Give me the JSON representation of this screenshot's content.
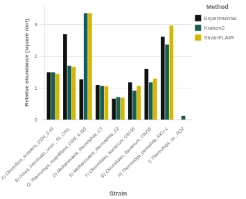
{
  "chart_data": {
    "type": "bar",
    "categories": [
      "A) Clostridium_scindens_DSM_5,45",
      "B) Dorea_intestinalis_unstr._Ab_CRIL",
      "C) Thermotoga_neapolitana_DSM_4,359",
      "D) Methanosaeta_thermophila_C3",
      "E) Methanosaeta_thermophila_S2",
      "F) Clostridiales_bacterium_CBI-95",
      "G) Clostridiales_bacterium_CB235",
      "H) Thermotoga_petrophila_RKU-1",
      "I) Thermotoga_sp._RQ2"
    ],
    "series": [
      {
        "name": "Experimental",
        "color": "#111111",
        "values": [
          1.5,
          2.7,
          1.28,
          1.1,
          0.67,
          1.18,
          1.6,
          2.62,
          0.0
        ]
      },
      {
        "name": "Kraken2",
        "color": "#1a5e52",
        "values": [
          1.5,
          1.7,
          3.35,
          1.07,
          0.72,
          0.92,
          1.18,
          2.37,
          0.13
        ]
      },
      {
        "name": "StrainFLAIR",
        "color": "#d4b800",
        "values": [
          1.45,
          1.67,
          3.35,
          1.06,
          0.7,
          1.07,
          1.3,
          2.97,
          0.0
        ]
      }
    ],
    "xlabel": "Strain",
    "ylabel": "Relative abundance (square root)",
    "ylim": [
      0,
      3.6
    ],
    "yticks": [
      0,
      1,
      2,
      3
    ],
    "grid": true,
    "legend": "right",
    "legend_title": "Method"
  }
}
